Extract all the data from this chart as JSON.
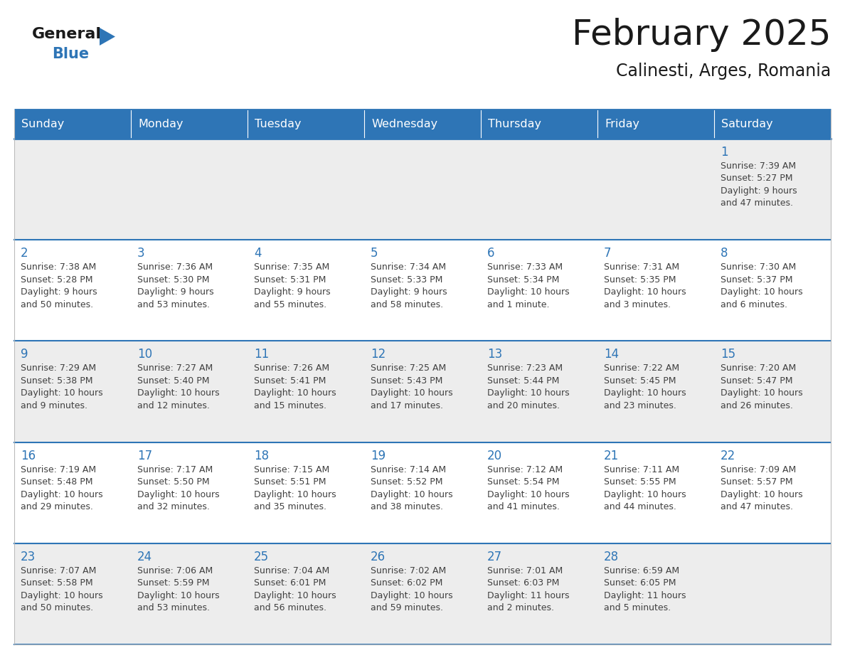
{
  "title": "February 2025",
  "subtitle": "Calinesti, Arges, Romania",
  "days_of_week": [
    "Sunday",
    "Monday",
    "Tuesday",
    "Wednesday",
    "Thursday",
    "Friday",
    "Saturday"
  ],
  "header_bg": "#2E75B6",
  "header_text": "#FFFFFF",
  "cell_bg_light": "#EDEDED",
  "cell_bg_white": "#FFFFFF",
  "day_number_color": "#2E75B6",
  "info_text_color": "#404040",
  "line_color": "#2E75B6",
  "background": "#FFFFFF",
  "logo_general_color": "#1a1a1a",
  "logo_blue_color": "#2E75B6",
  "logo_triangle_color": "#2E75B6",
  "calendar_data": [
    [
      null,
      null,
      null,
      null,
      null,
      null,
      {
        "day": "1",
        "sunrise": "7:39 AM",
        "sunset": "5:27 PM",
        "daylight": "9 hours\nand 47 minutes."
      }
    ],
    [
      {
        "day": "2",
        "sunrise": "7:38 AM",
        "sunset": "5:28 PM",
        "daylight": "9 hours\nand 50 minutes."
      },
      {
        "day": "3",
        "sunrise": "7:36 AM",
        "sunset": "5:30 PM",
        "daylight": "9 hours\nand 53 minutes."
      },
      {
        "day": "4",
        "sunrise": "7:35 AM",
        "sunset": "5:31 PM",
        "daylight": "9 hours\nand 55 minutes."
      },
      {
        "day": "5",
        "sunrise": "7:34 AM",
        "sunset": "5:33 PM",
        "daylight": "9 hours\nand 58 minutes."
      },
      {
        "day": "6",
        "sunrise": "7:33 AM",
        "sunset": "5:34 PM",
        "daylight": "10 hours\nand 1 minute."
      },
      {
        "day": "7",
        "sunrise": "7:31 AM",
        "sunset": "5:35 PM",
        "daylight": "10 hours\nand 3 minutes."
      },
      {
        "day": "8",
        "sunrise": "7:30 AM",
        "sunset": "5:37 PM",
        "daylight": "10 hours\nand 6 minutes."
      }
    ],
    [
      {
        "day": "9",
        "sunrise": "7:29 AM",
        "sunset": "5:38 PM",
        "daylight": "10 hours\nand 9 minutes."
      },
      {
        "day": "10",
        "sunrise": "7:27 AM",
        "sunset": "5:40 PM",
        "daylight": "10 hours\nand 12 minutes."
      },
      {
        "day": "11",
        "sunrise": "7:26 AM",
        "sunset": "5:41 PM",
        "daylight": "10 hours\nand 15 minutes."
      },
      {
        "day": "12",
        "sunrise": "7:25 AM",
        "sunset": "5:43 PM",
        "daylight": "10 hours\nand 17 minutes."
      },
      {
        "day": "13",
        "sunrise": "7:23 AM",
        "sunset": "5:44 PM",
        "daylight": "10 hours\nand 20 minutes."
      },
      {
        "day": "14",
        "sunrise": "7:22 AM",
        "sunset": "5:45 PM",
        "daylight": "10 hours\nand 23 minutes."
      },
      {
        "day": "15",
        "sunrise": "7:20 AM",
        "sunset": "5:47 PM",
        "daylight": "10 hours\nand 26 minutes."
      }
    ],
    [
      {
        "day": "16",
        "sunrise": "7:19 AM",
        "sunset": "5:48 PM",
        "daylight": "10 hours\nand 29 minutes."
      },
      {
        "day": "17",
        "sunrise": "7:17 AM",
        "sunset": "5:50 PM",
        "daylight": "10 hours\nand 32 minutes."
      },
      {
        "day": "18",
        "sunrise": "7:15 AM",
        "sunset": "5:51 PM",
        "daylight": "10 hours\nand 35 minutes."
      },
      {
        "day": "19",
        "sunrise": "7:14 AM",
        "sunset": "5:52 PM",
        "daylight": "10 hours\nand 38 minutes."
      },
      {
        "day": "20",
        "sunrise": "7:12 AM",
        "sunset": "5:54 PM",
        "daylight": "10 hours\nand 41 minutes."
      },
      {
        "day": "21",
        "sunrise": "7:11 AM",
        "sunset": "5:55 PM",
        "daylight": "10 hours\nand 44 minutes."
      },
      {
        "day": "22",
        "sunrise": "7:09 AM",
        "sunset": "5:57 PM",
        "daylight": "10 hours\nand 47 minutes."
      }
    ],
    [
      {
        "day": "23",
        "sunrise": "7:07 AM",
        "sunset": "5:58 PM",
        "daylight": "10 hours\nand 50 minutes."
      },
      {
        "day": "24",
        "sunrise": "7:06 AM",
        "sunset": "5:59 PM",
        "daylight": "10 hours\nand 53 minutes."
      },
      {
        "day": "25",
        "sunrise": "7:04 AM",
        "sunset": "6:01 PM",
        "daylight": "10 hours\nand 56 minutes."
      },
      {
        "day": "26",
        "sunrise": "7:02 AM",
        "sunset": "6:02 PM",
        "daylight": "10 hours\nand 59 minutes."
      },
      {
        "day": "27",
        "sunrise": "7:01 AM",
        "sunset": "6:03 PM",
        "daylight": "11 hours\nand 2 minutes."
      },
      {
        "day": "28",
        "sunrise": "6:59 AM",
        "sunset": "6:05 PM",
        "daylight": "11 hours\nand 5 minutes."
      },
      null
    ]
  ]
}
